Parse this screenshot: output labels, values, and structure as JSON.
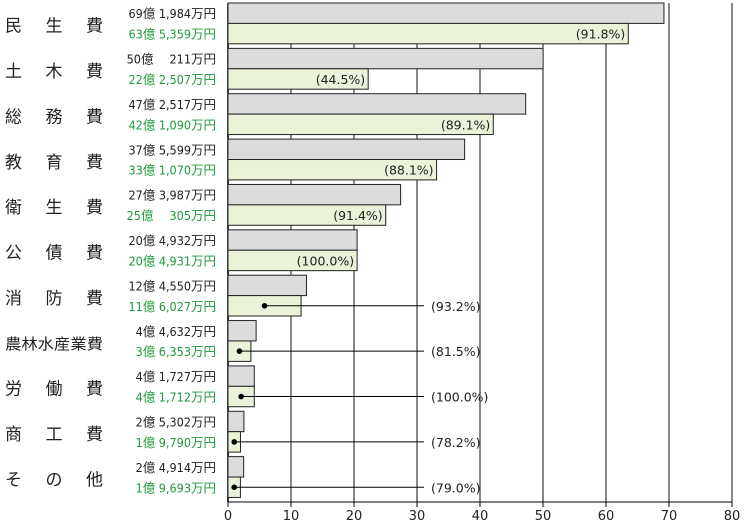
{
  "chart_data": {
    "type": "bar",
    "orientation": "horizontal",
    "grid": true,
    "xlim": [
      0,
      80
    ],
    "xticks": [
      "0",
      "10",
      "20",
      "30",
      "40",
      "50",
      "60",
      "70",
      "80"
    ],
    "colors": {
      "budget": "#dcdcdc",
      "actual": "#eaf3d9",
      "actual_text": "#1f9a3a"
    },
    "categories": [
      {
        "label": "民 生 費",
        "budget": 69.1984,
        "budget_label": "69億 1,984万円",
        "actual": 63.5359,
        "actual_label": "63億 5,359万円",
        "pct": "(91.8%)",
        "pct_inside": true
      },
      {
        "label": "土 木 費",
        "budget": 50.0211,
        "budget_label": "50億　 211万円",
        "actual": 22.2507,
        "actual_label": "22億 2,507万円",
        "pct": "(44.5%)",
        "pct_inside": true
      },
      {
        "label": "総 務 費",
        "budget": 47.2517,
        "budget_label": "47億 2,517万円",
        "actual": 42.109,
        "actual_label": "42億 1,090万円",
        "pct": "(89.1%)",
        "pct_inside": true
      },
      {
        "label": "教 育 費",
        "budget": 37.5599,
        "budget_label": "37億 5,599万円",
        "actual": 33.107,
        "actual_label": "33億 1,070万円",
        "pct": "(88.1%)",
        "pct_inside": true
      },
      {
        "label": "衛 生 費",
        "budget": 27.3987,
        "budget_label": "27億 3,987万円",
        "actual": 25.0305,
        "actual_label": "25億　 305万円",
        "pct": "(91.4%)",
        "pct_inside": true
      },
      {
        "label": "公 債 費",
        "budget": 20.4932,
        "budget_label": "20億 4,932万円",
        "actual": 20.4931,
        "actual_label": "20億 4,931万円",
        "pct": "(100.0%)",
        "pct_inside": true
      },
      {
        "label": "消 防 費",
        "budget": 12.455,
        "budget_label": "12億 4,550万円",
        "actual": 11.6027,
        "actual_label": "11億 6,027万円",
        "pct": "(93.2%)",
        "pct_inside": false
      },
      {
        "label": "農林水産業費",
        "budget": 4.4632,
        "budget_label": "4億 4,632万円",
        "actual": 3.6353,
        "actual_label": "3億 6,353万円",
        "pct": "(81.5%)",
        "pct_inside": false
      },
      {
        "label": "労 働 費",
        "budget": 4.1727,
        "budget_label": "4億 1,727万円",
        "actual": 4.1712,
        "actual_label": "4億 1,712万円",
        "pct": "(100.0%)",
        "pct_inside": false
      },
      {
        "label": "商 工 費",
        "budget": 2.5302,
        "budget_label": "2億 5,302万円",
        "actual": 1.979,
        "actual_label": "1億 9,790万円",
        "pct": "(78.2%)",
        "pct_inside": false
      },
      {
        "label": "そ の 他",
        "budget": 2.4914,
        "budget_label": "2億 4,914万円",
        "actual": 1.9693,
        "actual_label": "1億 9,693万円",
        "pct": "(79.0%)",
        "pct_inside": false
      }
    ]
  }
}
